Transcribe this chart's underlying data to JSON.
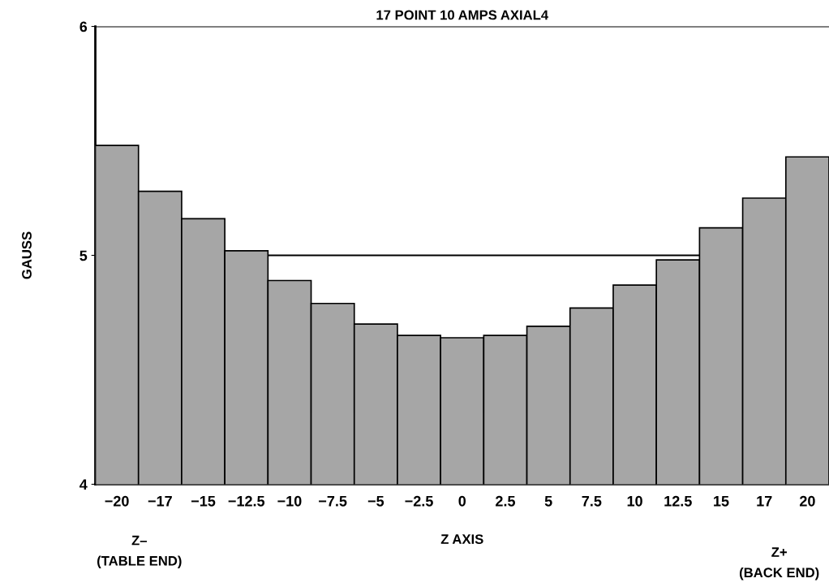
{
  "chart_data": {
    "type": "bar",
    "title": "17 POINT 10 AMPS AXIAL4",
    "xlabel": "Z AXIS",
    "ylabel": "GAUSS",
    "categories": [
      "−20",
      "−17",
      "−15",
      "−12.5",
      "−10",
      "−7.5",
      "−5",
      "−2.5",
      "0",
      "2.5",
      "5",
      "7.5",
      "10",
      "12.5",
      "15",
      "17",
      "20"
    ],
    "values": [
      5.48,
      5.28,
      5.16,
      5.02,
      4.89,
      4.79,
      4.7,
      4.65,
      4.64,
      4.65,
      4.69,
      4.77,
      4.87,
      4.98,
      5.12,
      5.25,
      5.43
    ],
    "color": "#a6a6a6",
    "ylim": [
      4,
      6
    ],
    "yticks": [
      4,
      5,
      6
    ],
    "grid": "y",
    "annotations": [
      "Z–\n(TABLE END)",
      "Z+\n(BACK END)"
    ]
  }
}
